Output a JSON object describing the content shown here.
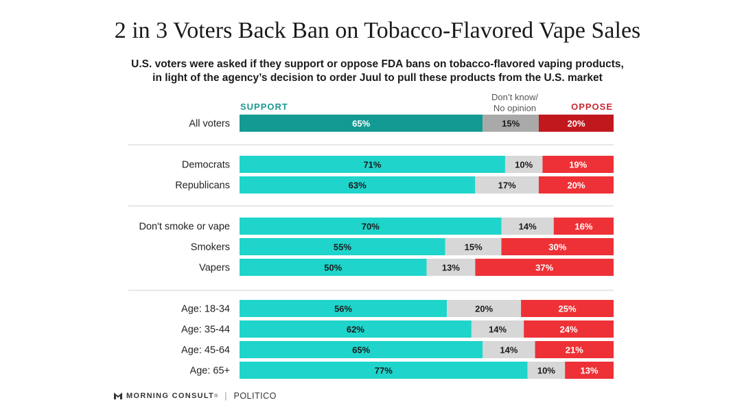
{
  "title": "2 in 3 Voters Back Ban on Tobacco-Flavored Vape Sales",
  "subtitle_line1": "U.S. voters were asked if they support or oppose FDA bans on tobacco-flavored vaping products,",
  "subtitle_line2": "in light of the agency’s decision to order Juul to pull these products from the U.S. market",
  "legend": {
    "support": "SUPPORT",
    "dont_know_line1": "Don’t know/",
    "dont_know_line2": "No opinion",
    "oppose": "OPPOSE"
  },
  "colors": {
    "support": "#1fd4cb",
    "support_highlight": "#139a93",
    "dont_know": "#d7d7d7",
    "dont_know_highlight": "#a9a9a9",
    "oppose": "#ee3136",
    "oppose_highlight": "#c0181d"
  },
  "chart_data": {
    "type": "bar",
    "orientation": "horizontal-stacked-100",
    "title": "2 in 3 Voters Back Ban on Tobacco-Flavored Vape Sales",
    "series_names": [
      "Support",
      "Don’t know/No opinion",
      "Oppose"
    ],
    "groups": [
      {
        "rows": [
          {
            "label": "All voters",
            "support": 65,
            "dk": 15,
            "oppose": 20,
            "highlight": true
          }
        ]
      },
      {
        "rows": [
          {
            "label": "Democrats",
            "support": 71,
            "dk": 10,
            "oppose": 19
          },
          {
            "label": "Republicans",
            "support": 63,
            "dk": 17,
            "oppose": 20
          }
        ]
      },
      {
        "rows": [
          {
            "label": "Don't smoke or vape",
            "support": 70,
            "dk": 14,
            "oppose": 16
          },
          {
            "label": "Smokers",
            "support": 55,
            "dk": 15,
            "oppose": 30
          },
          {
            "label": "Vapers",
            "support": 50,
            "dk": 13,
            "oppose": 37
          }
        ]
      },
      {
        "rows": [
          {
            "label": "Age: 18-34",
            "support": 56,
            "dk": 20,
            "oppose": 25
          },
          {
            "label": "Age: 35-44",
            "support": 62,
            "dk": 14,
            "oppose": 24
          },
          {
            "label": "Age: 45-64",
            "support": 65,
            "dk": 14,
            "oppose": 21
          },
          {
            "label": "Age: 65+",
            "support": 77,
            "dk": 10,
            "oppose": 13
          }
        ]
      }
    ]
  },
  "footer": {
    "morning_consult": "MORNING CONSULT",
    "trademark": "®",
    "separator": "|",
    "politico": "POLITICO"
  }
}
